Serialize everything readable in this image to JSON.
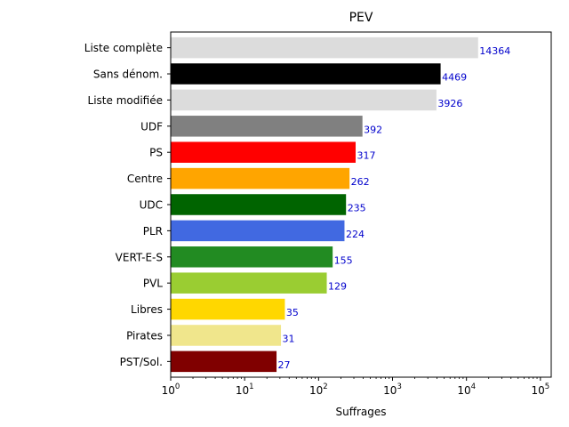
{
  "chart_data": {
    "type": "bar",
    "orientation": "horizontal",
    "title": "PEV",
    "xlabel": "Suffrages",
    "ylabel": "",
    "xscale": "log",
    "xlim": [
      1,
      140000
    ],
    "xticks": [
      {
        "value": 1,
        "base": "10",
        "exp": "0"
      },
      {
        "value": 10,
        "base": "10",
        "exp": "1"
      },
      {
        "value": 100,
        "base": "10",
        "exp": "2"
      },
      {
        "value": 1000,
        "base": "10",
        "exp": "3"
      },
      {
        "value": 10000,
        "base": "10",
        "exp": "4"
      },
      {
        "value": 100000,
        "base": "10",
        "exp": "5"
      }
    ],
    "grid": false,
    "legend": "none",
    "value_label_color": "#0000cc",
    "bars": [
      {
        "category": "Liste complète",
        "value": 14364,
        "label": "14364",
        "color": "#dcdcdc"
      },
      {
        "category": "Sans dénom.",
        "value": 4469,
        "label": "4469",
        "color": "#000000"
      },
      {
        "category": "Liste modifiée",
        "value": 3926,
        "label": "3926",
        "color": "#dcdcdc"
      },
      {
        "category": "UDF",
        "value": 392,
        "label": "392",
        "color": "#808080"
      },
      {
        "category": "PS",
        "value": 317,
        "label": "317",
        "color": "#ff0000"
      },
      {
        "category": "Centre",
        "value": 262,
        "label": "262",
        "color": "#ffa500"
      },
      {
        "category": "UDC",
        "value": 235,
        "label": "235",
        "color": "#006400"
      },
      {
        "category": "PLR",
        "value": 224,
        "label": "224",
        "color": "#4169e1"
      },
      {
        "category": "VERT-E-S",
        "value": 155,
        "label": "155",
        "color": "#228b22"
      },
      {
        "category": "PVL",
        "value": 129,
        "label": "129",
        "color": "#9acd32"
      },
      {
        "category": "Libres",
        "value": 35,
        "label": "35",
        "color": "#ffd700"
      },
      {
        "category": "Pirates",
        "value": 31,
        "label": "31",
        "color": "#f0e68c"
      },
      {
        "category": "PST/Sol.",
        "value": 27,
        "label": "27",
        "color": "#800000"
      }
    ]
  }
}
